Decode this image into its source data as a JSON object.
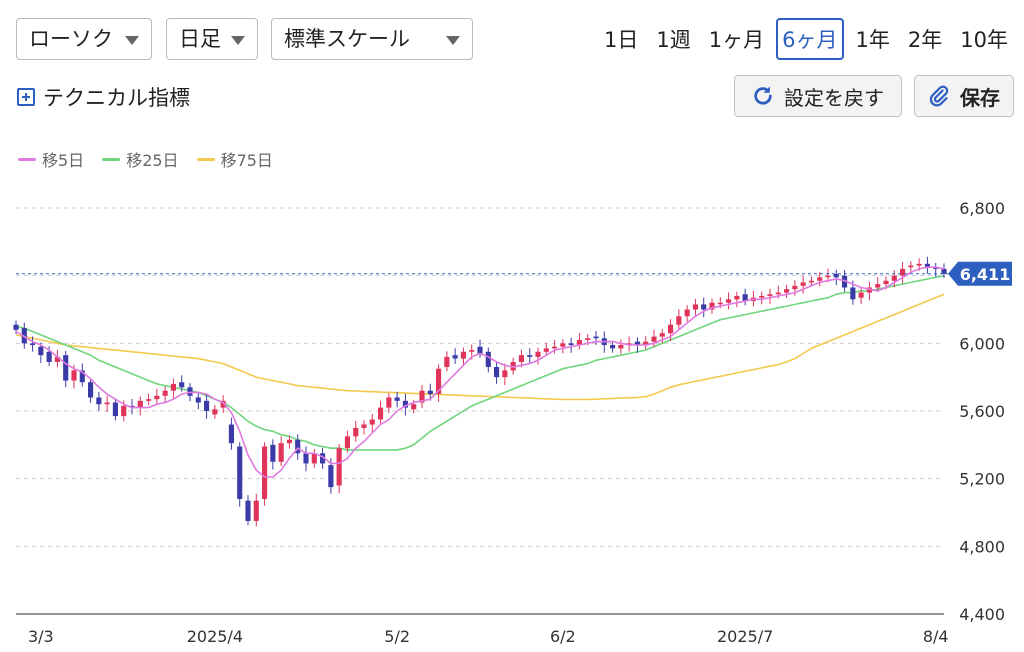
{
  "controls": {
    "chart_type_select": "ローソク",
    "interval_select": "日足",
    "scale_select": "標準スケール",
    "periods": [
      "1日",
      "1週",
      "1ヶ月",
      "6ヶ月",
      "1年",
      "2年",
      "10年"
    ],
    "active_period": "6ヶ月",
    "technical_label": "テクニカル指標",
    "reset_label": "設定を戻す",
    "save_label": "保存"
  },
  "colors": {
    "up": "#e0345a",
    "down": "#3b3ba8",
    "ma5": "#e07ae0",
    "ma25": "#6fd67c",
    "ma75": "#f2c94c",
    "accent": "#2d5fc0"
  },
  "chart_data": {
    "type": "candlestick",
    "legend": [
      {
        "name": "移5日",
        "color": "#e07ae0"
      },
      {
        "name": "移25日",
        "color": "#6fd67c"
      },
      {
        "name": "移75日",
        "color": "#f2c94c"
      }
    ],
    "x_tick_labels": [
      {
        "label": "3/3",
        "index": 3
      },
      {
        "label": "2025/4",
        "index": 24
      },
      {
        "label": "5/2",
        "index": 46
      },
      {
        "label": "6/2",
        "index": 66
      },
      {
        "label": "2025/7",
        "index": 88
      },
      {
        "label": "8/4",
        "index": 111
      }
    ],
    "y_ticks": [
      "6,800",
      "6,400",
      "6,000",
      "5,600",
      "5,200",
      "4,800",
      "4,400"
    ],
    "y_tick_values": [
      6800,
      6400,
      6000,
      5600,
      5200,
      4800,
      4400
    ],
    "ylim": [
      4400,
      6900
    ],
    "last_price": 6411,
    "last_price_label": "6,411",
    "closes": [
      6080,
      6000,
      5990,
      5930,
      5890,
      5920,
      5780,
      5840,
      5770,
      5680,
      5640,
      5650,
      5570,
      5630,
      5620,
      5660,
      5670,
      5690,
      5720,
      5760,
      5740,
      5690,
      5650,
      5600,
      5610,
      5660,
      5410,
      5080,
      4950,
      5070,
      5390,
      5300,
      5410,
      5430,
      5350,
      5290,
      5350,
      5290,
      5150,
      5380,
      5450,
      5500,
      5520,
      5550,
      5620,
      5680,
      5660,
      5620,
      5640,
      5720,
      5700,
      5850,
      5920,
      5910,
      5950,
      5960,
      5940,
      5860,
      5800,
      5840,
      5890,
      5930,
      5920,
      5950,
      5970,
      5980,
      6000,
      5990,
      6020,
      6030,
      6030,
      5990,
      5970,
      5990,
      6000,
      5990,
      6010,
      6040,
      6060,
      6110,
      6160,
      6200,
      6230,
      6200,
      6240,
      6240,
      6260,
      6280,
      6250,
      6270,
      6280,
      6290,
      6300,
      6320,
      6340,
      6360,
      6370,
      6390,
      6400,
      6390,
      6330,
      6260,
      6300,
      6330,
      6350,
      6370,
      6400,
      6440,
      6460,
      6470,
      6450,
      6440,
      6411
    ],
    "opens": [
      6110,
      6090,
      6000,
      5980,
      5950,
      5890,
      5930,
      5780,
      5840,
      5770,
      5680,
      5640,
      5650,
      5570,
      5630,
      5620,
      5660,
      5670,
      5690,
      5720,
      5770,
      5740,
      5680,
      5660,
      5580,
      5620,
      5520,
      5390,
      5070,
      4950,
      5080,
      5400,
      5300,
      5410,
      5430,
      5350,
      5290,
      5350,
      5280,
      5160,
      5380,
      5450,
      5500,
      5520,
      5550,
      5620,
      5680,
      5660,
      5610,
      5650,
      5720,
      5700,
      5860,
      5930,
      5910,
      5950,
      5980,
      5950,
      5860,
      5800,
      5840,
      5890,
      5930,
      5920,
      5950,
      5970,
      5980,
      6000,
      5990,
      6020,
      6040,
      6030,
      5990,
      5970,
      5990,
      6010,
      5990,
      6010,
      6040,
      6060,
      6110,
      6160,
      6200,
      6230,
      6200,
      6240,
      6240,
      6260,
      6290,
      6250,
      6270,
      6280,
      6290,
      6300,
      6320,
      6340,
      6360,
      6370,
      6400,
      6410,
      6400,
      6330,
      6270,
      6300,
      6330,
      6350,
      6370,
      6400,
      6450,
      6460,
      6470,
      6450,
      6440
    ],
    "ma5": [
      6070,
      6040,
      6010,
      5990,
      5960,
      5920,
      5880,
      5850,
      5830,
      5790,
      5740,
      5700,
      5670,
      5640,
      5620,
      5620,
      5620,
      5640,
      5650,
      5670,
      5700,
      5710,
      5710,
      5700,
      5670,
      5650,
      5590,
      5480,
      5340,
      5250,
      5210,
      5210,
      5250,
      5320,
      5380,
      5350,
      5350,
      5330,
      5290,
      5290,
      5320,
      5380,
      5420,
      5470,
      5520,
      5550,
      5600,
      5630,
      5650,
      5660,
      5670,
      5720,
      5770,
      5820,
      5870,
      5920,
      5940,
      5920,
      5890,
      5870,
      5860,
      5870,
      5880,
      5900,
      5930,
      5960,
      5970,
      5980,
      5990,
      6000,
      6010,
      6010,
      6010,
      6000,
      5990,
      5990,
      5990,
      6000,
      6020,
      6040,
      6080,
      6120,
      6160,
      6190,
      6210,
      6220,
      6230,
      6240,
      6250,
      6260,
      6260,
      6270,
      6280,
      6290,
      6300,
      6320,
      6340,
      6360,
      6370,
      6380,
      6370,
      6350,
      6330,
      6320,
      6310,
      6330,
      6360,
      6390,
      6420,
      6440,
      6450,
      6450,
      6440
    ],
    "ma25": [
      6100,
      6090,
      6070,
      6050,
      6030,
      6010,
      5990,
      5970,
      5950,
      5930,
      5900,
      5880,
      5860,
      5840,
      5820,
      5800,
      5780,
      5760,
      5750,
      5740,
      5730,
      5720,
      5710,
      5690,
      5670,
      5650,
      5620,
      5580,
      5540,
      5510,
      5490,
      5480,
      5460,
      5450,
      5430,
      5420,
      5400,
      5390,
      5380,
      5380,
      5370,
      5370,
      5370,
      5370,
      5370,
      5370,
      5370,
      5380,
      5400,
      5440,
      5480,
      5510,
      5540,
      5570,
      5600,
      5630,
      5650,
      5670,
      5690,
      5710,
      5730,
      5750,
      5770,
      5790,
      5810,
      5830,
      5850,
      5860,
      5870,
      5880,
      5900,
      5910,
      5920,
      5930,
      5940,
      5950,
      5960,
      5980,
      6000,
      6020,
      6040,
      6060,
      6080,
      6100,
      6120,
      6140,
      6150,
      6160,
      6170,
      6180,
      6190,
      6200,
      6210,
      6220,
      6230,
      6240,
      6250,
      6260,
      6270,
      6290,
      6300,
      6300,
      6310,
      6310,
      6320,
      6330,
      6340,
      6350,
      6360,
      6370,
      6380,
      6390,
      6400
    ],
    "ma75": [
      6050,
      6040,
      6030,
      6020,
      6010,
      6000,
      5990,
      5985,
      5980,
      5975,
      5970,
      5965,
      5960,
      5955,
      5950,
      5945,
      5940,
      5935,
      5930,
      5925,
      5920,
      5915,
      5910,
      5900,
      5890,
      5880,
      5860,
      5840,
      5820,
      5800,
      5790,
      5780,
      5770,
      5760,
      5750,
      5745,
      5740,
      5735,
      5730,
      5725,
      5720,
      5718,
      5716,
      5714,
      5712,
      5710,
      5708,
      5706,
      5704,
      5702,
      5700,
      5698,
      5696,
      5694,
      5692,
      5690,
      5688,
      5686,
      5684,
      5682,
      5680,
      5678,
      5676,
      5674,
      5672,
      5670,
      5668,
      5668,
      5668,
      5668,
      5670,
      5672,
      5674,
      5676,
      5678,
      5680,
      5685,
      5700,
      5720,
      5740,
      5755,
      5765,
      5775,
      5785,
      5795,
      5805,
      5815,
      5825,
      5835,
      5845,
      5855,
      5865,
      5875,
      5890,
      5910,
      5940,
      5970,
      5990,
      6010,
      6030,
      6050,
      6070,
      6090,
      6110,
      6130,
      6150,
      6170,
      6190,
      6210,
      6230,
      6250,
      6270,
      6290
    ]
  }
}
